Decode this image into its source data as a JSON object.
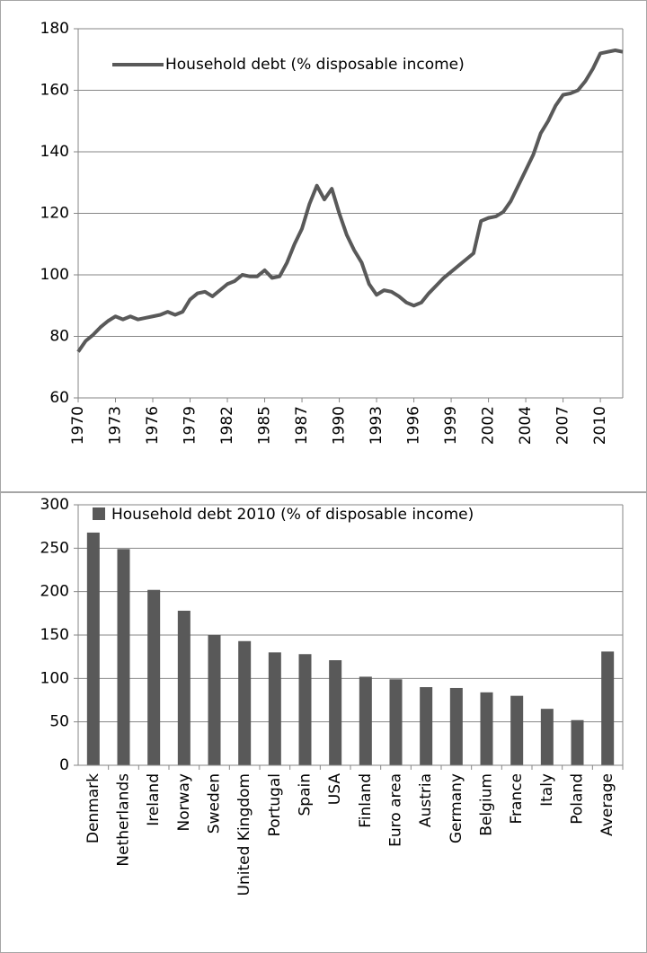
{
  "chart_data": [
    {
      "type": "line",
      "categories": [
        "1970",
        null,
        null,
        null,
        null,
        "1973",
        null,
        null,
        null,
        null,
        "1976",
        null,
        null,
        null,
        null,
        "1979",
        null,
        null,
        null,
        null,
        "1982",
        null,
        null,
        null,
        null,
        "1985",
        null,
        null,
        null,
        null,
        "1987",
        null,
        null,
        null,
        null,
        "1990",
        null,
        null,
        null,
        null,
        "1993",
        null,
        null,
        null,
        null,
        "1996",
        null,
        null,
        null,
        null,
        "1999",
        null,
        null,
        null,
        null,
        "2002",
        null,
        null,
        null,
        null,
        "2004",
        null,
        null,
        null,
        null,
        "2007",
        null,
        null,
        null,
        null,
        "2010",
        null,
        null,
        null
      ],
      "series": [
        {
          "name": "Household debt (% disposable income)",
          "color": "#595959",
          "values": [
            75,
            78.5,
            80.5,
            83,
            85,
            86.5,
            85.5,
            86.5,
            85.5,
            86,
            86.5,
            87,
            88,
            87,
            88,
            92,
            94,
            94.5,
            93,
            95,
            97,
            98,
            100,
            99.5,
            99.5,
            101.5,
            99,
            99.5,
            104,
            110,
            115,
            123,
            129,
            124.5,
            128,
            120,
            113,
            108,
            104,
            97,
            93.5,
            95,
            94.5,
            93,
            91,
            90,
            91,
            94,
            96.5,
            99,
            101,
            103,
            105,
            107,
            117.5,
            118.5,
            119,
            120.5,
            124,
            129,
            134,
            139,
            146,
            150,
            155,
            158.5,
            159,
            160,
            163,
            167,
            172,
            172.5,
            173,
            172.5
          ]
        }
      ],
      "ylim": [
        60,
        180
      ],
      "yticks": [
        60,
        80,
        100,
        120,
        140,
        160,
        180
      ],
      "grid": true,
      "legend": "top-left"
    },
    {
      "type": "bar",
      "categories": [
        "Denmark",
        "Netherlands",
        "Ireland",
        "Norway",
        "Sweden",
        "United Kingdom",
        "Portugal",
        "Spain",
        "USA",
        "Finland",
        "Euro area",
        "Austria",
        "Germany",
        "Belgium",
        "France",
        "Italy",
        "Poland",
        "Average"
      ],
      "series": [
        {
          "name": "Household debt 2010 (% of disposable income)",
          "color": "#595959",
          "values": [
            268,
            249,
            202,
            178,
            150,
            143,
            130,
            128,
            121,
            102,
            99,
            90,
            89,
            84,
            80,
            65,
            52,
            131
          ]
        }
      ],
      "ylim": [
        0,
        300
      ],
      "yticks": [
        0,
        50,
        100,
        150,
        200,
        250,
        300
      ],
      "grid": true,
      "legend": "top-left"
    }
  ]
}
